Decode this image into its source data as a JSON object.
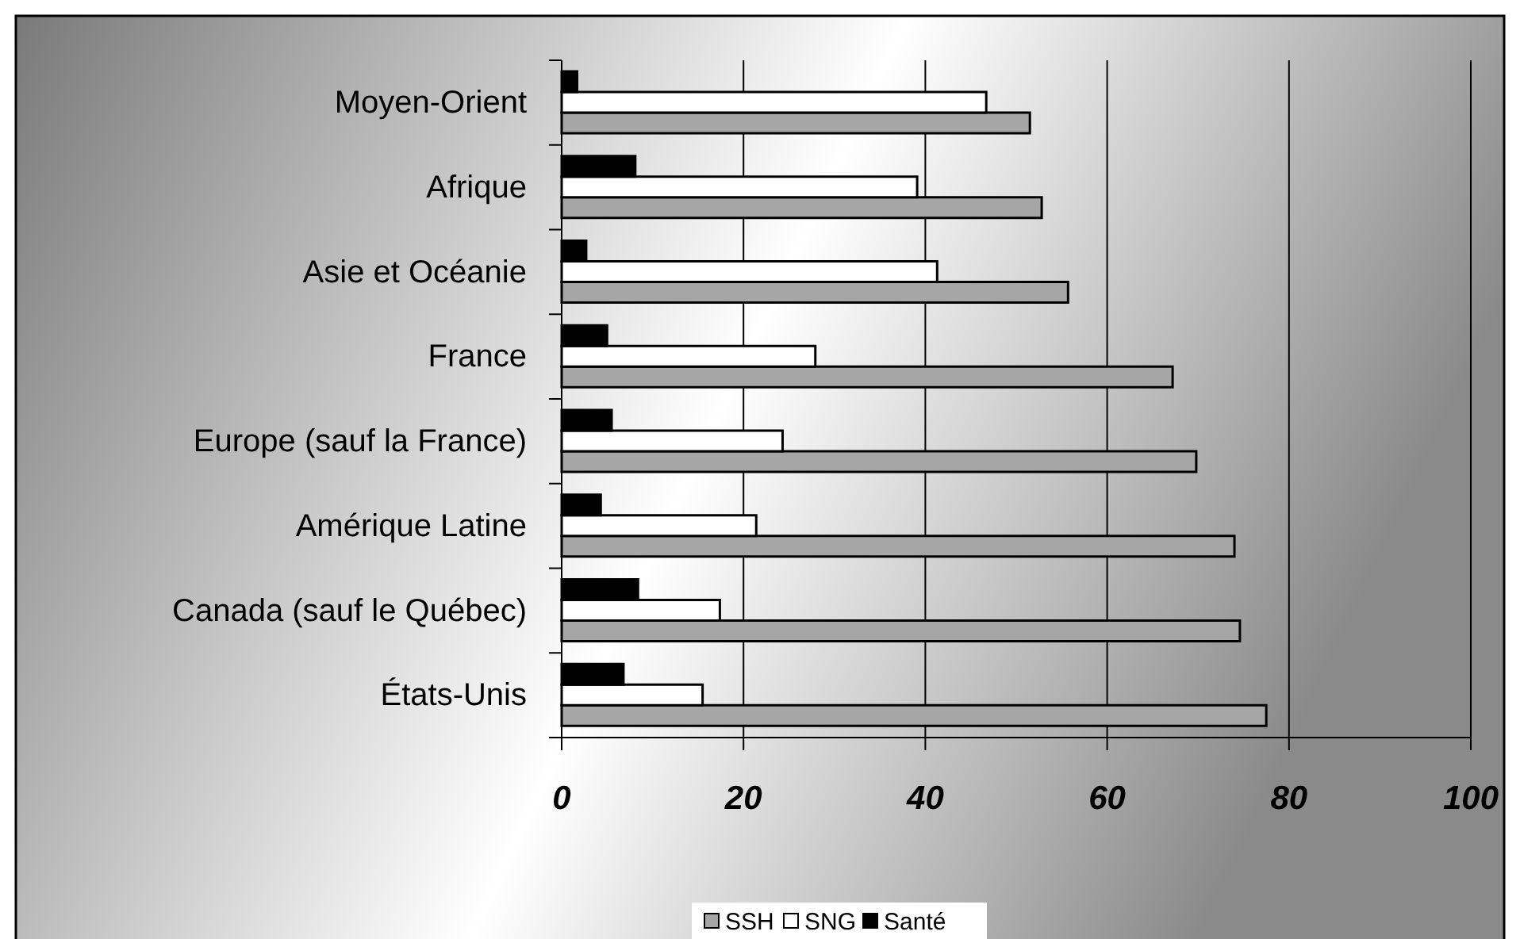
{
  "chart_data": {
    "type": "bar",
    "orientation": "horizontal",
    "categories": [
      "Moyen-Orient",
      "Afrique",
      "Asie et Océanie",
      "France",
      "Europe (sauf la France)",
      "Amérique Latine",
      "Canada (sauf le Québec)",
      "États-Unis"
    ],
    "series": [
      {
        "name": "SSH",
        "color": "#a6a6a6",
        "values": [
          51.5,
          52.8,
          55.7,
          67.2,
          69.8,
          74.0,
          74.6,
          77.5
        ]
      },
      {
        "name": "SNG",
        "color": "#ffffff",
        "values": [
          46.7,
          39.1,
          41.3,
          27.9,
          24.3,
          21.4,
          17.4,
          15.5
        ]
      },
      {
        "name": "Santé",
        "color": "#000000",
        "values": [
          1.7,
          8.1,
          2.7,
          5.0,
          5.5,
          4.3,
          8.4,
          6.8
        ]
      }
    ],
    "xlim": [
      0,
      100
    ],
    "xticks": [
      0,
      20,
      40,
      60,
      80,
      100
    ],
    "grid": "x",
    "legend": "bottom"
  }
}
